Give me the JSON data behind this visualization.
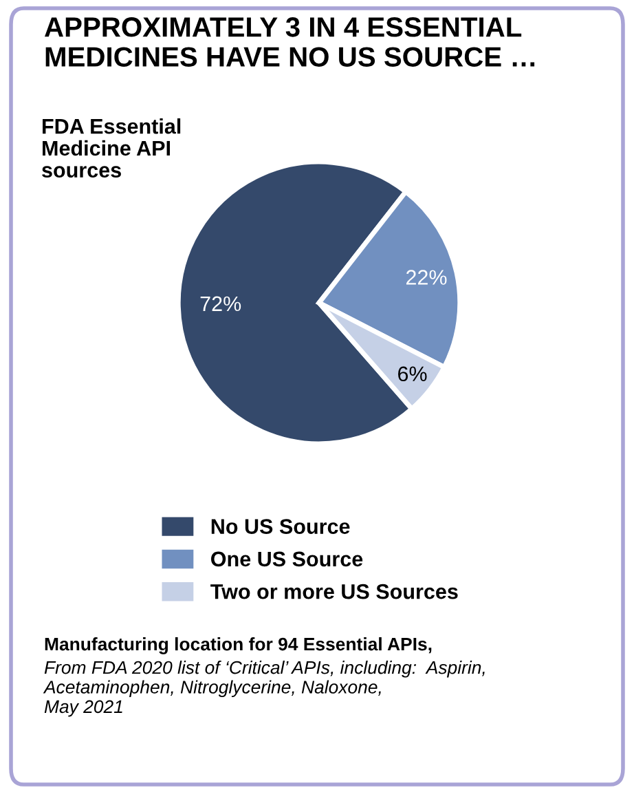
{
  "chart_data": {
    "type": "pie",
    "title": "APPROXIMATELY 3 IN 4 ESSENTIAL MEDICINES HAVE NO US SOURCE …",
    "subtitle": "FDA Essential\nMedicine API\nsources",
    "categories": [
      "No US Source",
      "One US Source",
      "Two or more US Sources"
    ],
    "values": [
      72,
      22,
      6
    ],
    "value_labels": [
      "72%",
      "22%",
      "6%"
    ],
    "colors": [
      "#34496b",
      "#7190c0",
      "#c5d0e6"
    ],
    "legend": "bottom",
    "annotations": [
      "Manufacturing location for 94 Essential APIs,",
      "From FDA 2020 list of ‘Critical’ APIs, including:  Aspirin,\nAcetaminophen, Nitroglycerine, Naloxone,\nMay 2021"
    ]
  }
}
